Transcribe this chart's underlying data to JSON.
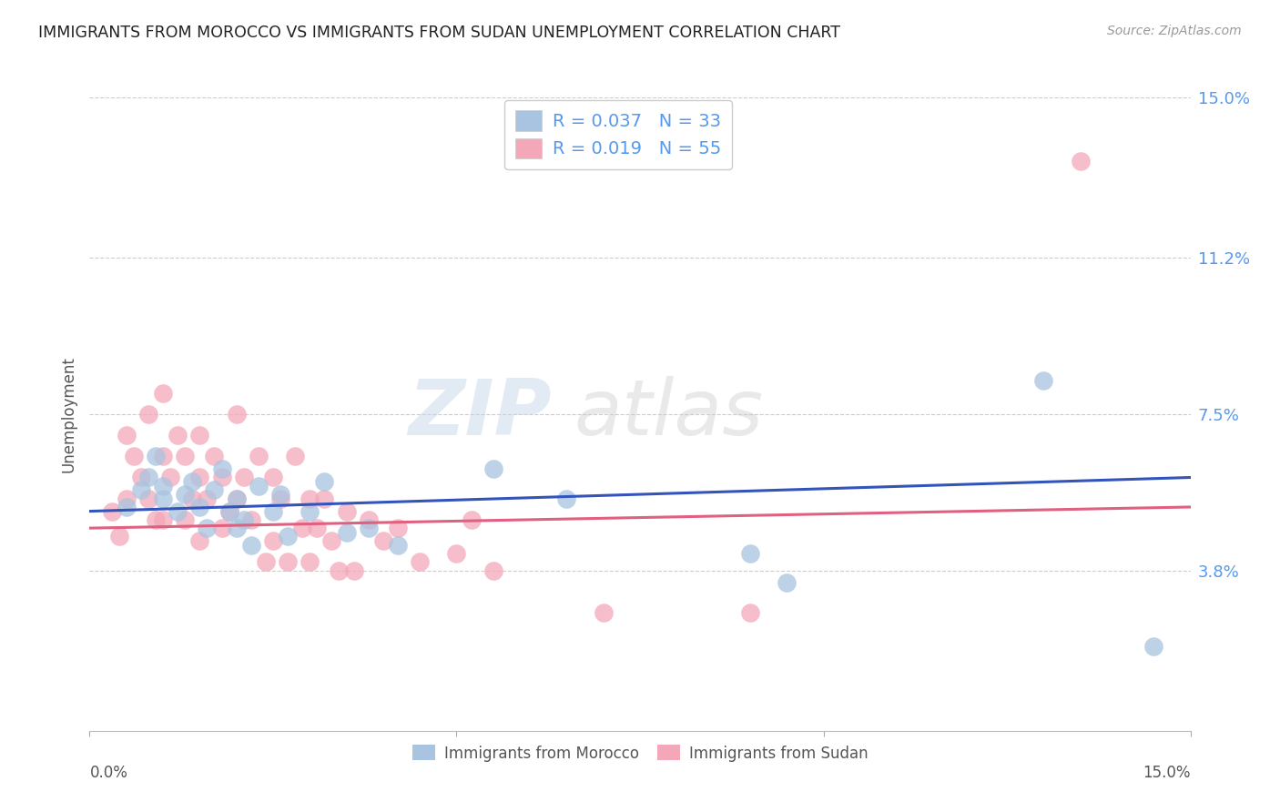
{
  "title": "IMMIGRANTS FROM MOROCCO VS IMMIGRANTS FROM SUDAN UNEMPLOYMENT CORRELATION CHART",
  "source": "Source: ZipAtlas.com",
  "ylabel": "Unemployment",
  "xlim": [
    0.0,
    0.15
  ],
  "ylim": [
    0.0,
    0.15
  ],
  "morocco_R": 0.037,
  "morocco_N": 33,
  "sudan_R": 0.019,
  "sudan_N": 55,
  "morocco_color": "#a8c4e0",
  "sudan_color": "#f4a7b9",
  "morocco_line_color": "#3355bb",
  "sudan_line_color": "#e06080",
  "watermark_zip": "ZIP",
  "watermark_atlas": "atlas",
  "ytick_vals": [
    0.038,
    0.075,
    0.112,
    0.15
  ],
  "ytick_labels": [
    "3.8%",
    "7.5%",
    "11.2%",
    "15.0%"
  ],
  "morocco_x": [
    0.005,
    0.007,
    0.008,
    0.009,
    0.01,
    0.01,
    0.012,
    0.013,
    0.014,
    0.015,
    0.016,
    0.017,
    0.018,
    0.019,
    0.02,
    0.02,
    0.021,
    0.022,
    0.023,
    0.025,
    0.026,
    0.027,
    0.03,
    0.032,
    0.035,
    0.038,
    0.042,
    0.055,
    0.065,
    0.09,
    0.095,
    0.13,
    0.145
  ],
  "morocco_y": [
    0.053,
    0.057,
    0.06,
    0.065,
    0.055,
    0.058,
    0.052,
    0.056,
    0.059,
    0.053,
    0.048,
    0.057,
    0.062,
    0.052,
    0.055,
    0.048,
    0.05,
    0.044,
    0.058,
    0.052,
    0.056,
    0.046,
    0.052,
    0.059,
    0.047,
    0.048,
    0.044,
    0.062,
    0.055,
    0.042,
    0.035,
    0.083,
    0.02
  ],
  "sudan_x": [
    0.003,
    0.004,
    0.005,
    0.005,
    0.006,
    0.007,
    0.008,
    0.008,
    0.009,
    0.01,
    0.01,
    0.01,
    0.011,
    0.012,
    0.013,
    0.013,
    0.014,
    0.015,
    0.015,
    0.015,
    0.016,
    0.017,
    0.018,
    0.018,
    0.019,
    0.02,
    0.02,
    0.021,
    0.022,
    0.023,
    0.024,
    0.025,
    0.025,
    0.026,
    0.027,
    0.028,
    0.029,
    0.03,
    0.03,
    0.031,
    0.032,
    0.033,
    0.034,
    0.035,
    0.036,
    0.038,
    0.04,
    0.042,
    0.045,
    0.05,
    0.052,
    0.055,
    0.07,
    0.09,
    0.135
  ],
  "sudan_y": [
    0.052,
    0.046,
    0.07,
    0.055,
    0.065,
    0.06,
    0.075,
    0.055,
    0.05,
    0.08,
    0.065,
    0.05,
    0.06,
    0.07,
    0.065,
    0.05,
    0.055,
    0.07,
    0.06,
    0.045,
    0.055,
    0.065,
    0.06,
    0.048,
    0.052,
    0.075,
    0.055,
    0.06,
    0.05,
    0.065,
    0.04,
    0.06,
    0.045,
    0.055,
    0.04,
    0.065,
    0.048,
    0.055,
    0.04,
    0.048,
    0.055,
    0.045,
    0.038,
    0.052,
    0.038,
    0.05,
    0.045,
    0.048,
    0.04,
    0.042,
    0.05,
    0.038,
    0.028,
    0.028,
    0.135
  ]
}
